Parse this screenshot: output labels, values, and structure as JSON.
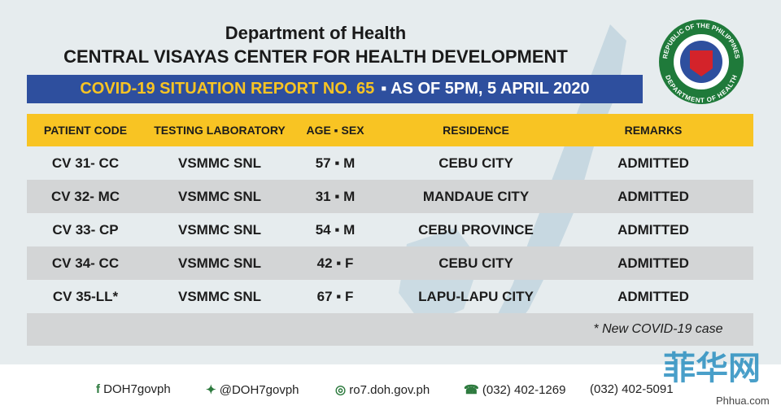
{
  "header": {
    "title": "Department of Health",
    "subtitle": "CENTRAL VISAYAS CENTER FOR HEALTH DEVELOPMENT",
    "banner_report": "COVID-19 SITUATION REPORT NO. 65",
    "banner_date": "▪ AS OF 5PM, 5 APRIL 2020"
  },
  "seal": {
    "top": "REPUBLIC OF THE PHILIPPINES",
    "bottom": "DEPARTMENT OF HEALTH"
  },
  "table": {
    "columns": [
      "PATIENT CODE",
      "TESTING LABORATORY",
      "AGE ▪ SEX",
      "RESIDENCE",
      "REMARKS"
    ],
    "rows": [
      [
        "CV 31- CC",
        "VSMMC SNL",
        "57 ▪ M",
        "CEBU CITY",
        "ADMITTED"
      ],
      [
        "CV 32- MC",
        "VSMMC SNL",
        "31 ▪ M",
        "MANDAUE CITY",
        "ADMITTED"
      ],
      [
        "CV 33- CP",
        "VSMMC SNL",
        "54 ▪ M",
        "CEBU PROVINCE",
        "ADMITTED"
      ],
      [
        "CV 34- CC",
        "VSMMC SNL",
        "42 ▪ F",
        "CEBU CITY",
        "ADMITTED"
      ],
      [
        "CV 35-LL*",
        "VSMMC SNL",
        "67 ▪ F",
        "LAPU-LAPU CITY",
        "ADMITTED"
      ]
    ],
    "footnote": "* New COVID-19 case"
  },
  "footer": {
    "facebook": "DOH7govph",
    "twitter": "@DOH7govph",
    "website": "ro7.doh.gov.ph",
    "phone1": "(032) 402-1269",
    "phone2": "(032) 402-5091"
  },
  "watermark": {
    "name": "菲华网",
    "url": "Phhua.com"
  }
}
